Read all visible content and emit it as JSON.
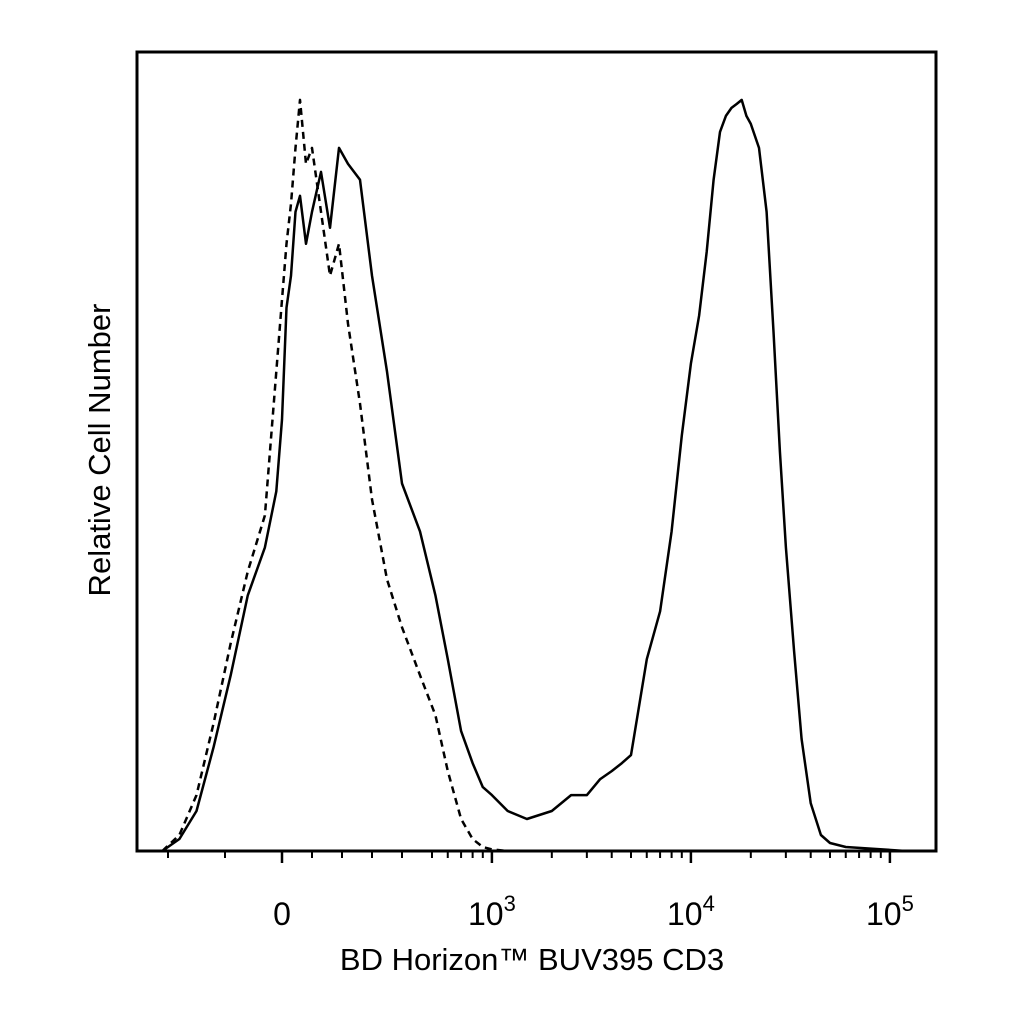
{
  "chart_data": {
    "type": "line",
    "title": "",
    "xlabel": "BD Horizon™ BUV395 CD3",
    "ylabel": "Relative Cell Number",
    "x_scale": "biexponential",
    "xlim": [
      -230,
      262144
    ],
    "ylim": [
      0,
      100
    ],
    "grid": false,
    "legend": "none",
    "x_tick_labels": [
      {
        "value": 0,
        "base": "0",
        "exp": ""
      },
      {
        "value": 1000,
        "base": "10",
        "exp": "3"
      },
      {
        "value": 10000,
        "base": "10",
        "exp": "4"
      },
      {
        "value": 100000,
        "base": "10",
        "exp": "5"
      }
    ],
    "series": [
      {
        "line": "solid",
        "color": "#000000",
        "x": [
          -210,
          -180,
          -150,
          -120,
          -90,
          -60,
          -30,
          -10,
          0,
          15,
          30,
          45,
          60,
          80,
          100,
          130,
          160,
          190,
          220,
          260,
          300,
          350,
          400,
          460,
          520,
          600,
          700,
          800,
          900,
          1000,
          1200,
          1500,
          2000,
          2500,
          3000,
          3500,
          4000,
          4500,
          5000,
          6000,
          7000,
          8000,
          9000,
          10000,
          11000,
          12000,
          13000,
          14000,
          15000,
          16000,
          17000,
          18000,
          19000,
          20000,
          22000,
          24000,
          26000,
          28000,
          30000,
          33000,
          36000,
          40000,
          45000,
          50000,
          60000,
          80000,
          120000
        ],
        "y": [
          0,
          1.5,
          5,
          13,
          22,
          32,
          38,
          45,
          54,
          68,
          72,
          80,
          82,
          76,
          80,
          85,
          78,
          88,
          86,
          84,
          72,
          60,
          46,
          40,
          32,
          24,
          15,
          11,
          8,
          7,
          5,
          4,
          5,
          7,
          7,
          9,
          10,
          11,
          12,
          24,
          30,
          40,
          52,
          61,
          67,
          75,
          84,
          90,
          92,
          93,
          93.5,
          94,
          92,
          91,
          88,
          80,
          65,
          50,
          38,
          25,
          14,
          6,
          2,
          1,
          0.5,
          0.3,
          0
        ]
      },
      {
        "line": "dashed",
        "color": "#000000",
        "x": [
          -210,
          -180,
          -150,
          -120,
          -90,
          -60,
          -30,
          -10,
          0,
          15,
          30,
          45,
          60,
          80,
          100,
          130,
          160,
          190,
          220,
          260,
          300,
          350,
          400,
          460,
          520,
          600,
          700,
          800,
          900,
          1000,
          1200
        ],
        "y": [
          0,
          2,
          7,
          16,
          26,
          35,
          42,
          60,
          69,
          76,
          81,
          88,
          94,
          86,
          88,
          80,
          72,
          76,
          66,
          56,
          44,
          34,
          28,
          22,
          17,
          10,
          4,
          1.5,
          0.5,
          0.2,
          0
        ]
      }
    ]
  }
}
